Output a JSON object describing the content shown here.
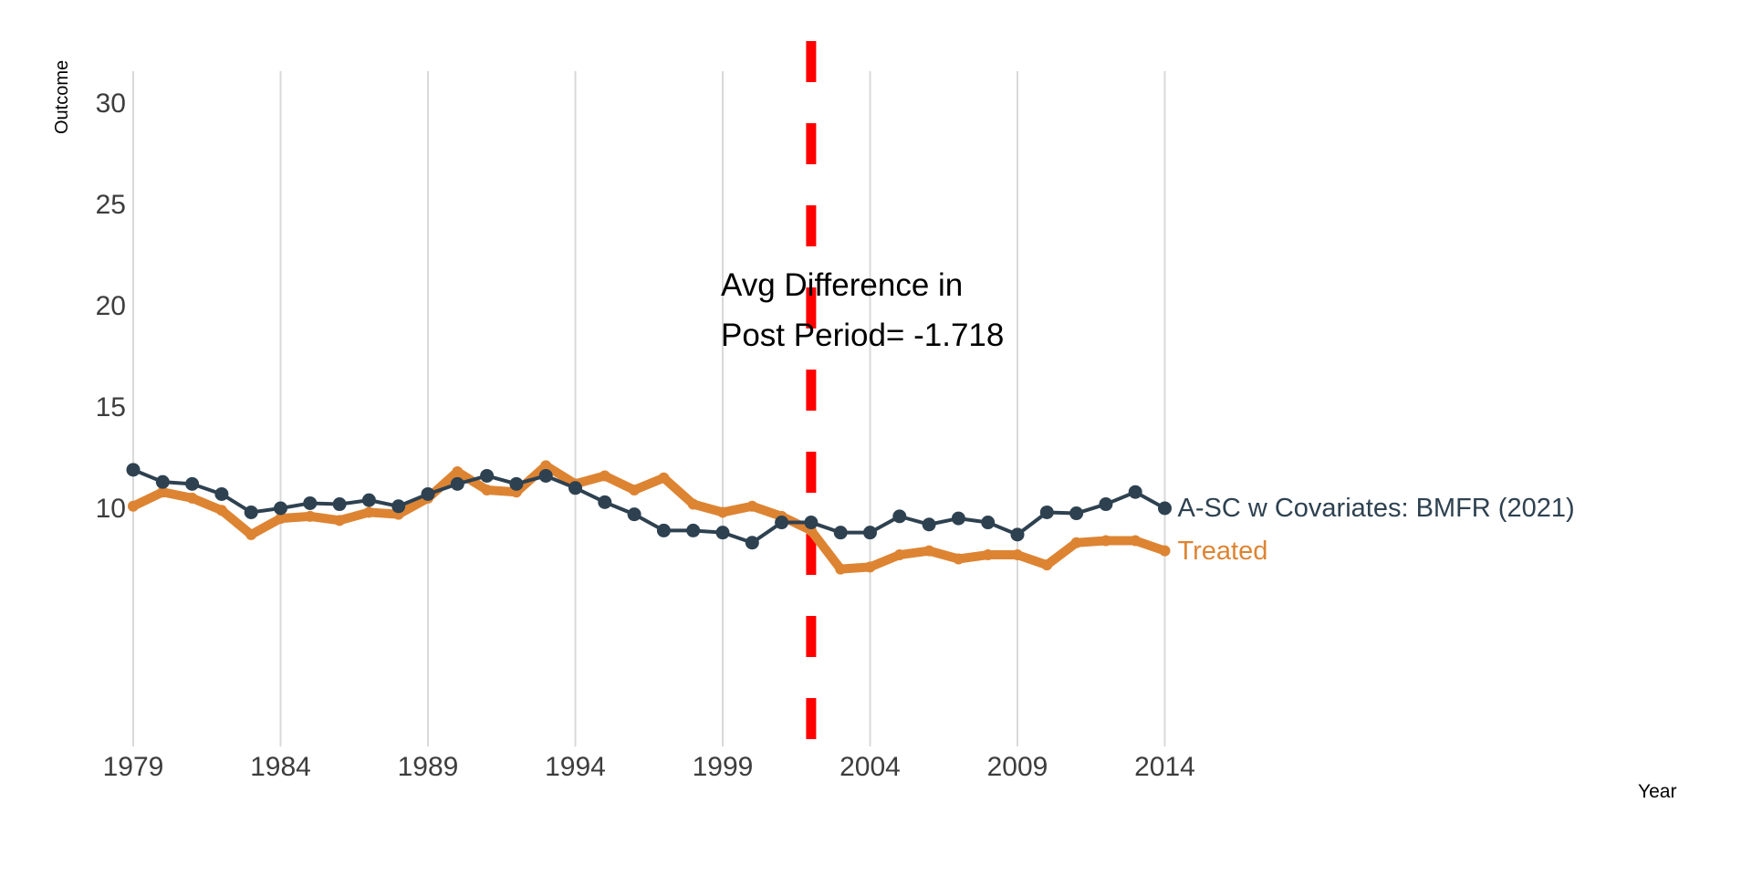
{
  "colors": {
    "asc_line": "#2e4150",
    "treated_line": "#dd8433",
    "treatment_vline": "#ff0000",
    "gridline": "#d9d9d9",
    "tick_label": "#3d3d3d",
    "annotation_text": "#000000"
  },
  "chart_data": {
    "type": "line",
    "title": "",
    "xlabel": "Year",
    "ylabel": "Outcome",
    "grid": "vertical-only",
    "legend_position": "direct-labels-at-line-ends",
    "x_ticks": [
      1979,
      1984,
      1989,
      1994,
      1999,
      2004,
      2009,
      2014
    ],
    "y_ticks": [
      10,
      15,
      20,
      25,
      30
    ],
    "xlim": [
      1979,
      2014
    ],
    "ylim_shown": [
      10,
      30
    ],
    "treatment_year": 2002,
    "annotation": {
      "line1": "Avg Difference in",
      "line2": "Post Period= -1.718"
    },
    "x": [
      1979,
      1980,
      1981,
      1982,
      1983,
      1984,
      1985,
      1986,
      1987,
      1988,
      1989,
      1990,
      1991,
      1992,
      1993,
      1994,
      1995,
      1996,
      1997,
      1998,
      1999,
      2000,
      2001,
      2002,
      2003,
      2004,
      2005,
      2006,
      2007,
      2008,
      2009,
      2010,
      2011,
      2012,
      2013,
      2014
    ],
    "series": [
      {
        "name": "A-SC w Covariates: BMFR (2021)",
        "color_key": "asc_line",
        "marker": "circle",
        "values": [
          11.9,
          11.3,
          11.2,
          10.7,
          9.8,
          10.0,
          10.25,
          10.2,
          10.4,
          10.1,
          10.7,
          11.2,
          11.6,
          11.2,
          11.6,
          11.0,
          10.3,
          9.7,
          8.9,
          8.9,
          8.8,
          8.3,
          9.3,
          9.3,
          8.8,
          8.8,
          9.6,
          9.2,
          9.5,
          9.3,
          8.7,
          9.8,
          9.75,
          10.2,
          10.8,
          10.0
        ]
      },
      {
        "name": "Treated",
        "color_key": "treated_line",
        "marker": "none",
        "values": [
          10.1,
          10.8,
          10.5,
          9.9,
          8.7,
          9.5,
          9.6,
          9.4,
          9.8,
          9.7,
          10.5,
          11.8,
          10.9,
          10.8,
          12.1,
          11.2,
          11.6,
          10.9,
          11.5,
          10.2,
          9.8,
          10.1,
          9.6,
          8.9,
          7.0,
          7.1,
          7.7,
          7.9,
          7.5,
          7.7,
          7.7,
          7.2,
          8.3,
          8.4,
          8.4,
          7.9
        ]
      }
    ]
  }
}
